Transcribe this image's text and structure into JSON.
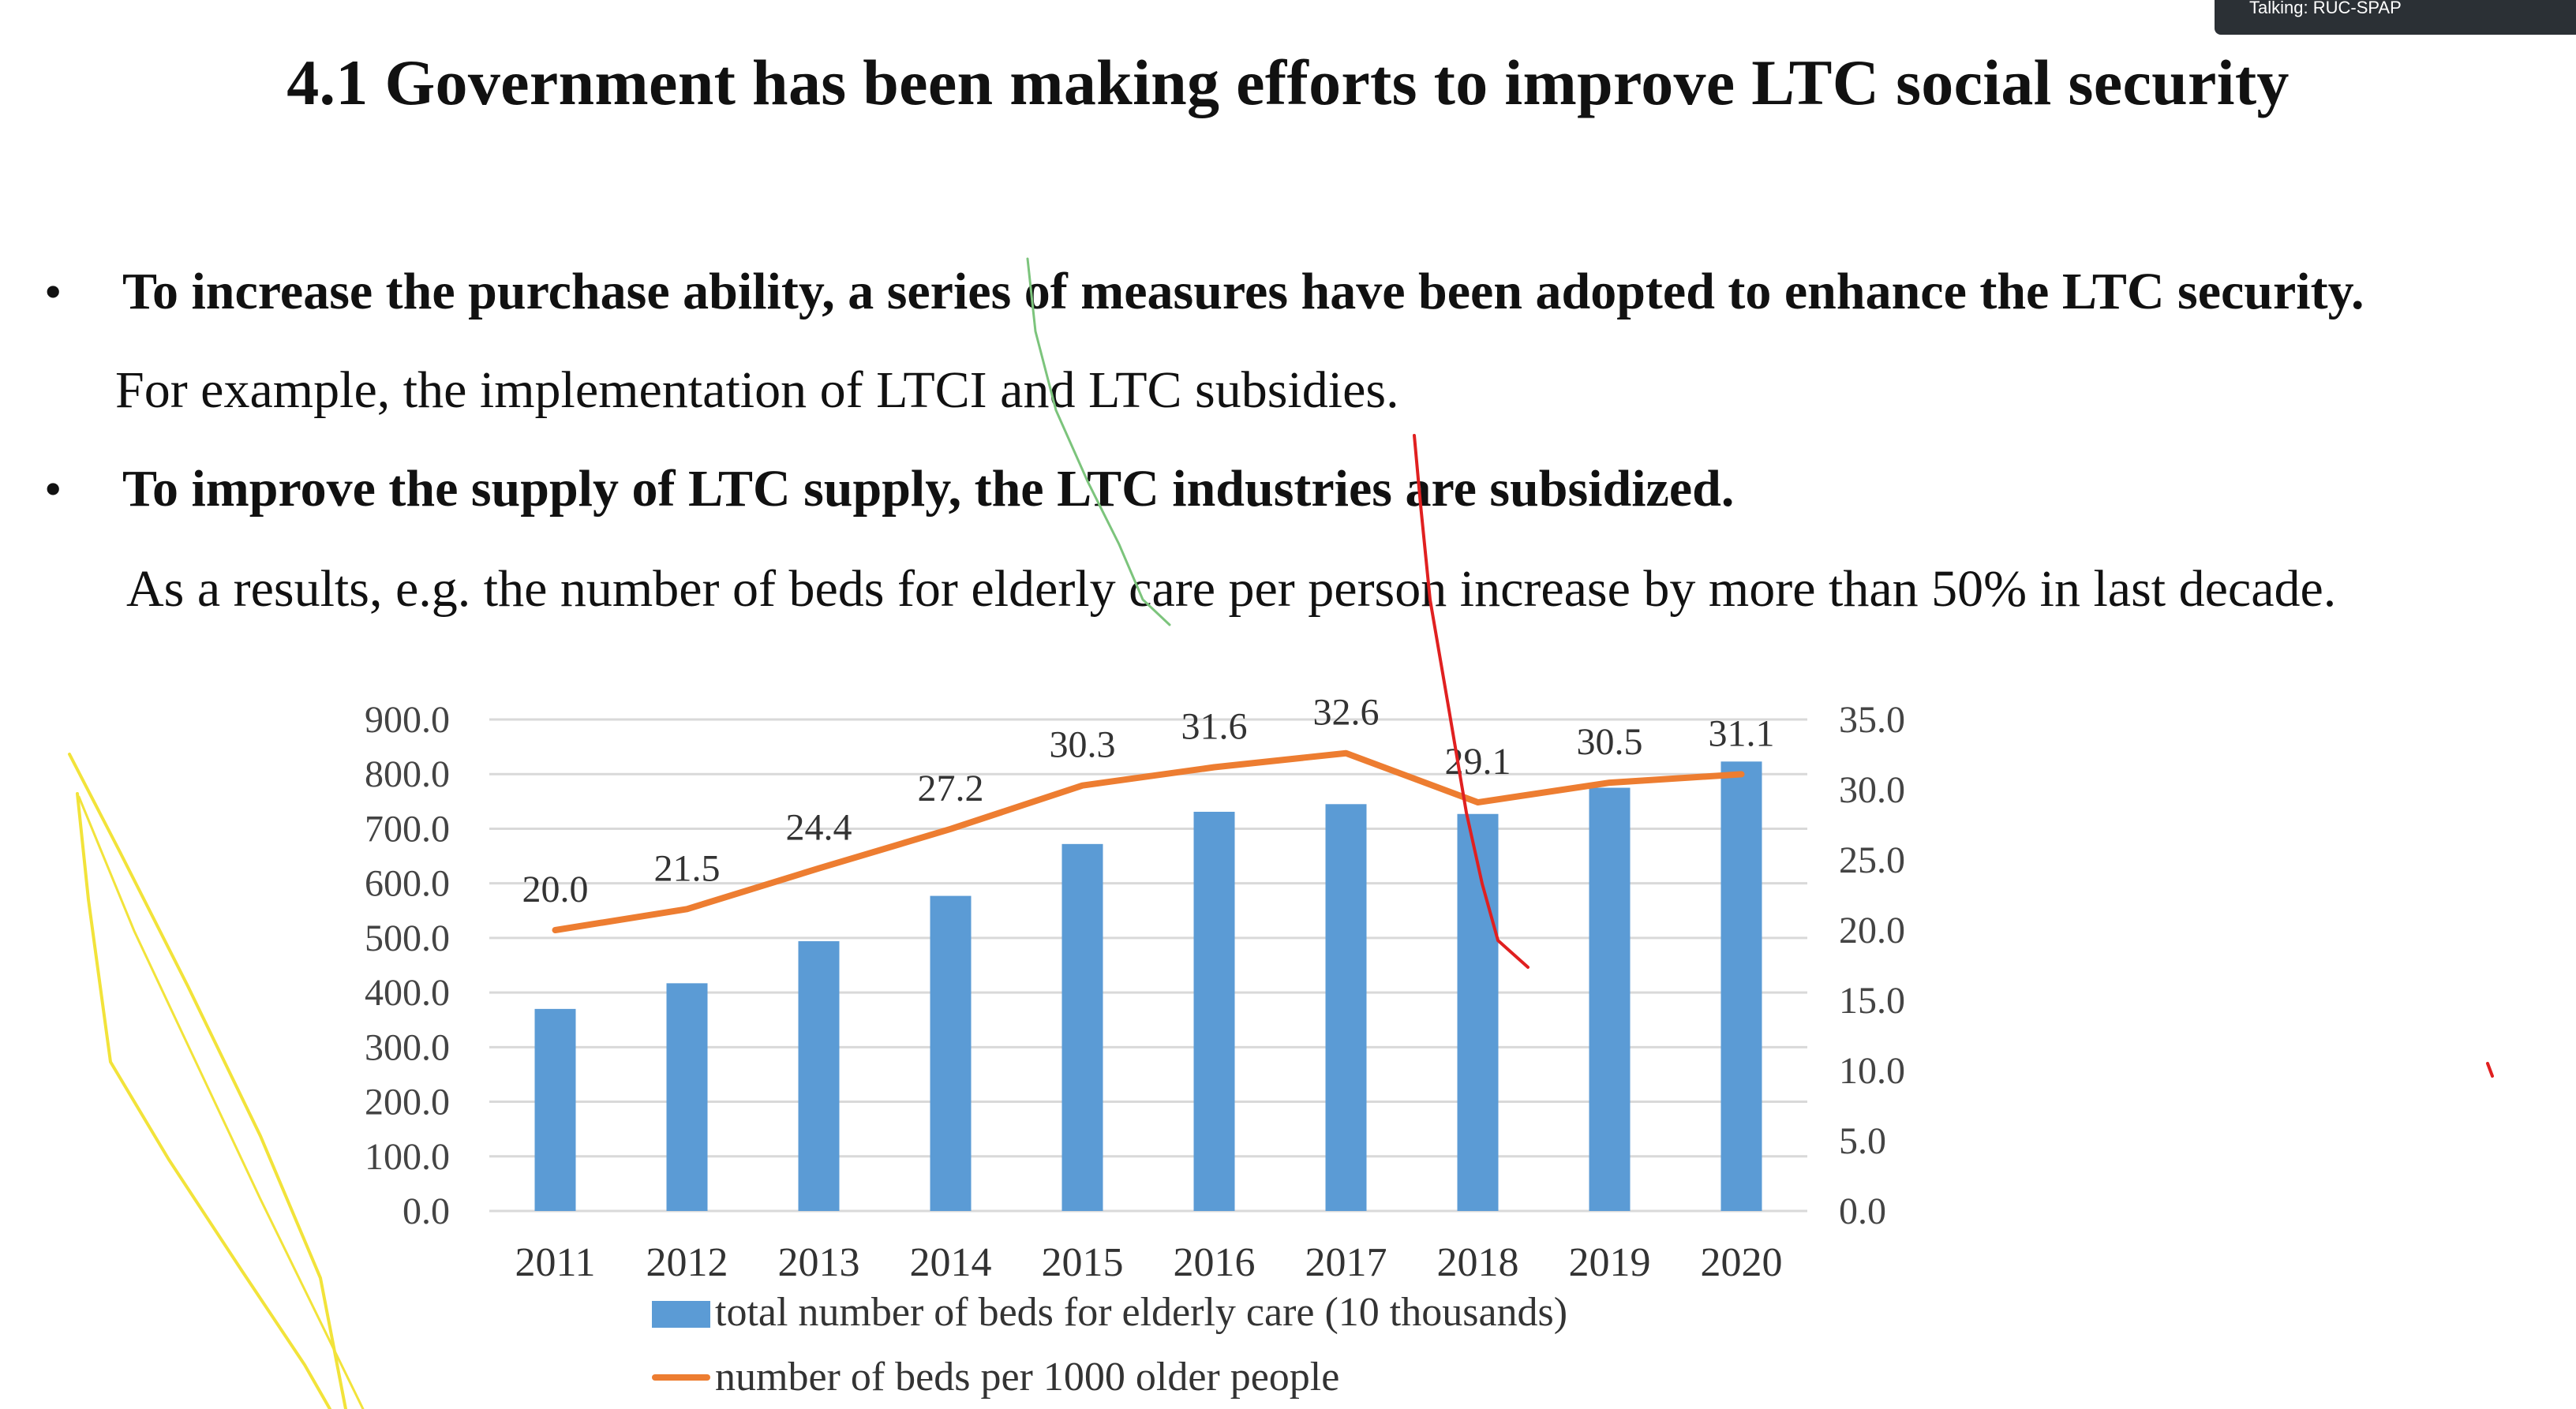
{
  "meeting": {
    "talking_label": "Talking: RUC-SPAP"
  },
  "slide": {
    "title": "4.1 Government has been making efforts to improve LTC social security",
    "bullets": [
      {
        "marker": "•",
        "heading": "To increase the purchase ability, a series of measures have been adopted to enhance the LTC security.",
        "body": "For example, the implementation of LTCI and LTC subsidies."
      },
      {
        "marker": "•",
        "heading": "To improve the supply of LTC supply, the LTC industries are subsidized.",
        "body": "As a results, e.g. the number of beds for elderly care per person increase by more than 50% in last decade."
      }
    ]
  },
  "chart_data": {
    "type": "bar",
    "categories": [
      "2011",
      "2012",
      "2013",
      "2014",
      "2015",
      "2016",
      "2017",
      "2018",
      "2019",
      "2020"
    ],
    "series": [
      {
        "name": "total number of beds for elderly care (10 thousands)",
        "type": "bar",
        "axis": "left",
        "color": "#5b9bd5",
        "values": [
          370,
          417,
          494,
          577,
          672,
          731,
          745,
          727,
          775,
          823
        ]
      },
      {
        "name": "number of beds per 1000 older people",
        "type": "line",
        "axis": "right",
        "color": "#ed7d31",
        "values": [
          20.0,
          21.5,
          24.4,
          27.2,
          30.3,
          31.6,
          32.6,
          29.1,
          30.5,
          31.1
        ],
        "labels": [
          "20.0",
          "21.5",
          "24.4",
          "27.2",
          "30.3",
          "31.6",
          "32.6",
          "29.1",
          "30.5",
          "31.1"
        ]
      }
    ],
    "ylim_left": [
      0,
      900
    ],
    "ylim_right": [
      0,
      35
    ],
    "left_ticks": [
      "0.0",
      "100.0",
      "200.0",
      "300.0",
      "400.0",
      "500.0",
      "600.0",
      "700.0",
      "800.0",
      "900.0"
    ],
    "right_ticks": [
      "0.0",
      "5.0",
      "10.0",
      "15.0",
      "20.0",
      "25.0",
      "30.0",
      "35.0"
    ],
    "grid": "horizontal",
    "legend_position": "bottom"
  },
  "colors": {
    "bar": "#5b9bd5",
    "line": "#ed7d31",
    "grid": "#d9d9d9",
    "annotation_green": "#7cc47c",
    "annotation_red": "#e02020",
    "annotation_yellow": "#f2e33a"
  }
}
